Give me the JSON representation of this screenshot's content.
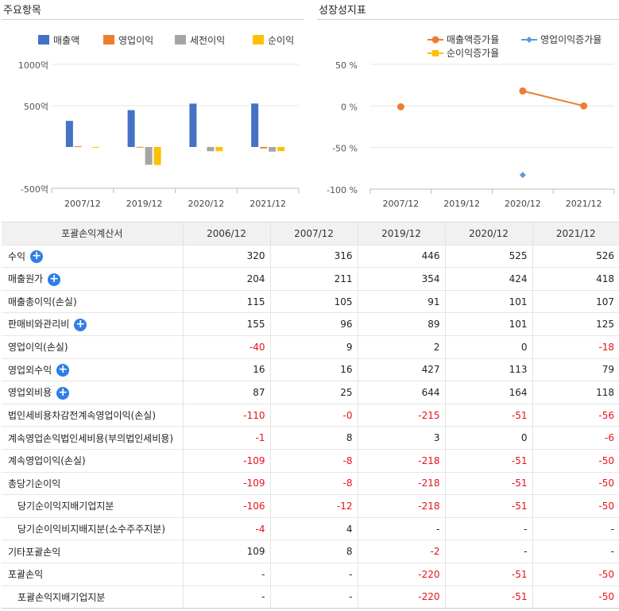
{
  "left_panel": {
    "title": "주요항목"
  },
  "right_panel": {
    "title": "성장성지표"
  },
  "chart_data": [
    {
      "type": "bar",
      "categories": [
        "2007/12",
        "2019/12",
        "2020/12",
        "2021/12"
      ],
      "series": [
        {
          "name": "매출액",
          "color": "#4472c4",
          "values": [
            316,
            446,
            525,
            526
          ]
        },
        {
          "name": "영업이익",
          "color": "#ed7d31",
          "values": [
            9,
            2,
            0,
            -18
          ]
        },
        {
          "name": "세전이익",
          "color": "#a5a5a5",
          "values": [
            0,
            -215,
            -51,
            -56
          ]
        },
        {
          "name": "순이익",
          "color": "#ffc000",
          "values": [
            -8,
            -218,
            -51,
            -50
          ]
        }
      ],
      "yticks": [
        "1000억",
        "500억",
        "",
        "-500억"
      ],
      "ylim": [
        -500,
        1000
      ],
      "legend": "top"
    },
    {
      "type": "line",
      "categories": [
        "2007/12",
        "2019/12",
        "2020/12",
        "2021/12"
      ],
      "series": [
        {
          "name": "매출액증가율",
          "color": "#ed7d31",
          "marker": "circle",
          "values": [
            -1,
            null,
            18,
            0
          ]
        },
        {
          "name": "영업이익증가율",
          "color": "#5b9bd5",
          "marker": "diamond",
          "values": [
            null,
            null,
            -83,
            null
          ]
        },
        {
          "name": "순이익증가율",
          "color": "#ffc000",
          "marker": "square",
          "values": [
            null,
            null,
            null,
            null
          ]
        }
      ],
      "yticks": [
        "50 %",
        "0 %",
        "-50 %",
        "-100 %"
      ],
      "ylim": [
        -100,
        50
      ],
      "legend": "top"
    }
  ],
  "table": {
    "header": [
      "포괄손익계산서",
      "2006/12",
      "2007/12",
      "2019/12",
      "2020/12",
      "2021/12"
    ],
    "rows": [
      {
        "label": "수익",
        "plus": true,
        "indent": false,
        "values": [
          "320",
          "316",
          "446",
          "525",
          "526"
        ]
      },
      {
        "label": "매출원가",
        "plus": true,
        "indent": false,
        "values": [
          "204",
          "211",
          "354",
          "424",
          "418"
        ]
      },
      {
        "label": "매출총이익(손실)",
        "plus": false,
        "indent": false,
        "values": [
          "115",
          "105",
          "91",
          "101",
          "107"
        ]
      },
      {
        "label": "판매비와관리비",
        "plus": true,
        "indent": false,
        "values": [
          "155",
          "96",
          "89",
          "101",
          "125"
        ]
      },
      {
        "label": "영업이익(손실)",
        "plus": false,
        "indent": false,
        "values": [
          "-40",
          "9",
          "2",
          "0",
          "-18"
        ]
      },
      {
        "label": "영업외수익",
        "plus": true,
        "indent": false,
        "values": [
          "16",
          "16",
          "427",
          "113",
          "79"
        ]
      },
      {
        "label": "영업외비용",
        "plus": true,
        "indent": false,
        "values": [
          "87",
          "25",
          "644",
          "164",
          "118"
        ]
      },
      {
        "label": "법인세비용차감전계속영업이익(손실)",
        "plus": false,
        "indent": false,
        "values": [
          "-110",
          "-0",
          "-215",
          "-51",
          "-56"
        ]
      },
      {
        "label": "계속영업손익법인세비용(부의법인세비용)",
        "plus": false,
        "indent": false,
        "values": [
          "-1",
          "8",
          "3",
          "0",
          "-6"
        ]
      },
      {
        "label": "계속영업이익(손실)",
        "plus": false,
        "indent": false,
        "values": [
          "-109",
          "-8",
          "-218",
          "-51",
          "-50"
        ]
      },
      {
        "label": "총당기순이익",
        "plus": false,
        "indent": false,
        "values": [
          "-109",
          "-8",
          "-218",
          "-51",
          "-50"
        ]
      },
      {
        "label": "당기순이익지배기업지분",
        "plus": false,
        "indent": true,
        "values": [
          "-106",
          "-12",
          "-218",
          "-51",
          "-50"
        ]
      },
      {
        "label": "당기순이익비지배지분(소수주주지분)",
        "plus": false,
        "indent": true,
        "values": [
          "-4",
          "4",
          "-",
          "-",
          "-"
        ]
      },
      {
        "label": "기타포괄손익",
        "plus": false,
        "indent": false,
        "values": [
          "109",
          "8",
          "-2",
          "-",
          "-"
        ]
      },
      {
        "label": "포괄손익",
        "plus": false,
        "indent": false,
        "values": [
          "-",
          "-",
          "-220",
          "-51",
          "-50"
        ]
      },
      {
        "label": "포괄손익지배기업지분",
        "plus": false,
        "indent": true,
        "values": [
          "-",
          "-",
          "-220",
          "-51",
          "-50"
        ]
      }
    ],
    "plus_icon": "plus-circle-icon"
  }
}
